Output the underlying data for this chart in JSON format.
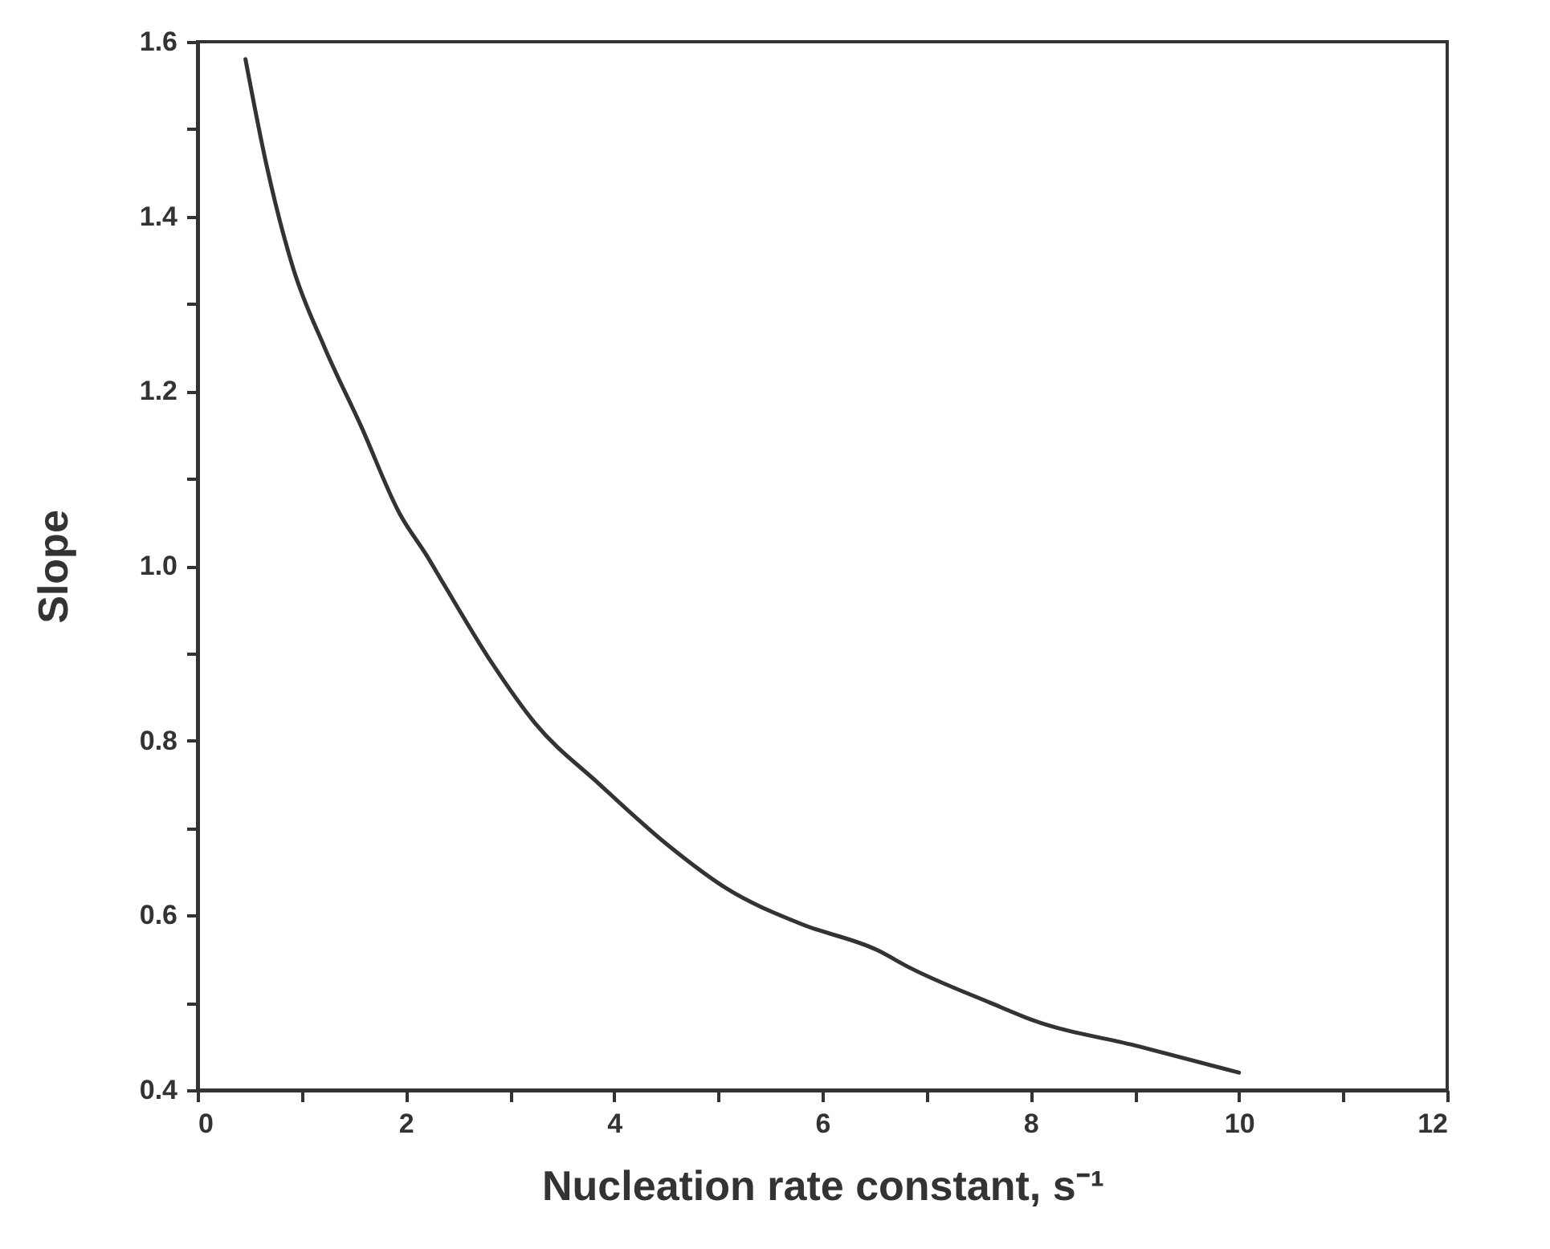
{
  "chart_data": {
    "type": "line",
    "xlabel": "Nucleation rate constant, s⁻¹",
    "ylabel": "Slope",
    "x": [
      0.46,
      0.66,
      0.92,
      1.22,
      1.57,
      1.94,
      2.21,
      2.36,
      2.82,
      3.24,
      3.86,
      4.52,
      5.09,
      5.8,
      6.53,
      6.84,
      7.61,
      8.02,
      9.04,
      10.0
    ],
    "series": [
      {
        "color": "#333333",
        "values": [
          1.58,
          1.46,
          1.34,
          1.25,
          1.16,
          1.06,
          1.01,
          0.98,
          0.89,
          0.82,
          0.75,
          0.68,
          0.63,
          0.59,
          0.56,
          0.54,
          0.5,
          0.48,
          0.45,
          0.42
        ]
      }
    ],
    "xlim": [
      0,
      12
    ],
    "ylim": [
      0.4,
      1.6
    ],
    "xticks": [
      0,
      {
        "value": 1,
        "label": null
      },
      2,
      {
        "value": 3,
        "label": null
      },
      4,
      {
        "value": 5,
        "label": null
      },
      6,
      {
        "value": 7,
        "label": null
      },
      8,
      {
        "value": 9,
        "label": null
      },
      10,
      {
        "value": 11,
        "label": null
      },
      12
    ],
    "yticks": [
      {
        "value": 0.4,
        "label": "0.4"
      },
      {
        "value": 0.5,
        "label": null
      },
      {
        "value": 0.6,
        "label": "0.6"
      },
      {
        "value": 0.7,
        "label": null
      },
      {
        "value": 0.8,
        "label": "0.8"
      },
      {
        "value": 0.9,
        "label": null
      },
      {
        "value": 1.0,
        "label": "1.0"
      },
      {
        "value": 1.1,
        "label": null
      },
      {
        "value": 1.2,
        "label": "1.2"
      },
      {
        "value": 1.3,
        "label": null
      },
      {
        "value": 1.4,
        "label": "1.4"
      },
      {
        "value": 1.5,
        "label": null
      },
      {
        "value": 1.6,
        "label": "1.6"
      }
    ],
    "grid": false,
    "marker": "none",
    "line_style": "solid"
  }
}
